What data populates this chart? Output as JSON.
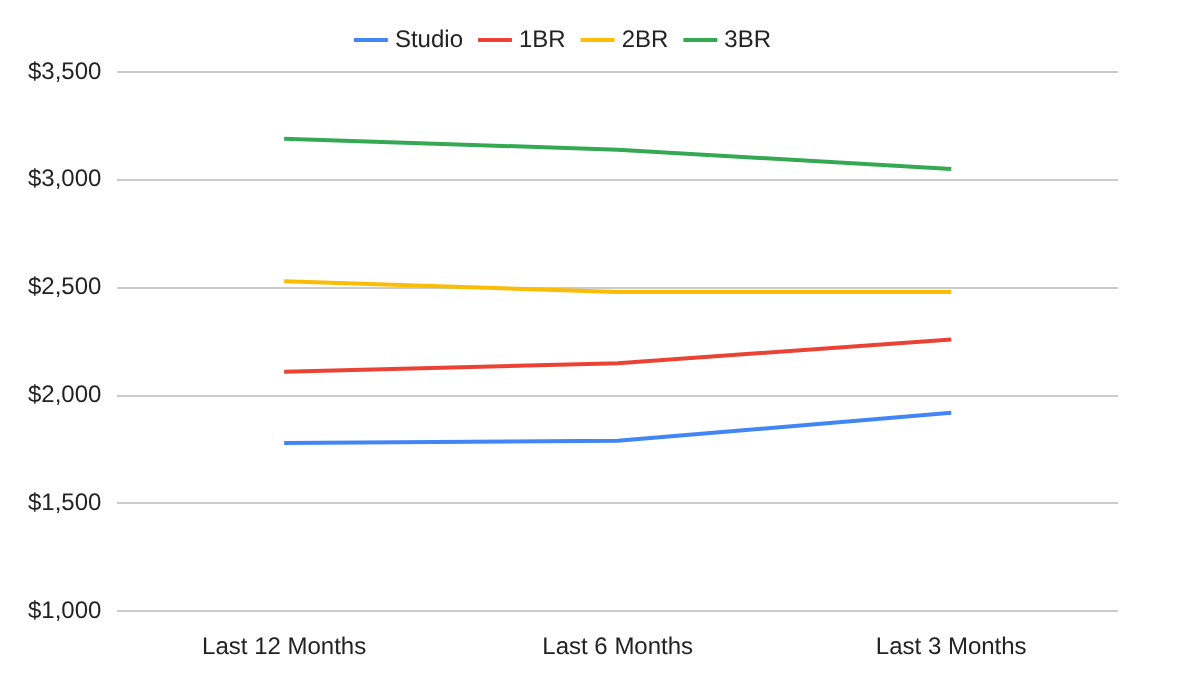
{
  "chart_data": {
    "type": "line",
    "categories": [
      "Last 12 Months",
      "Last 6 Months",
      "Last 3 Months"
    ],
    "series": [
      {
        "name": "Studio",
        "color": "#4285f4",
        "values": [
          1780,
          1790,
          1920
        ]
      },
      {
        "name": "1BR",
        "color": "#ea4335",
        "values": [
          2110,
          2150,
          2260
        ]
      },
      {
        "name": "2BR",
        "color": "#fbbc04",
        "values": [
          2530,
          2480,
          2480
        ]
      },
      {
        "name": "3BR",
        "color": "#34a853",
        "values": [
          3190,
          3140,
          3050
        ]
      }
    ],
    "ylim": [
      1000,
      3500
    ],
    "yticks": [
      {
        "value": 1000,
        "label": "$1,000"
      },
      {
        "value": 1500,
        "label": "$1,500"
      },
      {
        "value": 2000,
        "label": "$2,000"
      },
      {
        "value": 2500,
        "label": "$2,500"
      },
      {
        "value": 3000,
        "label": "$3,000"
      },
      {
        "value": 3500,
        "label": "$3,500"
      }
    ],
    "grid": "y",
    "legend": "top",
    "marker": "none",
    "line_style": "solid"
  }
}
